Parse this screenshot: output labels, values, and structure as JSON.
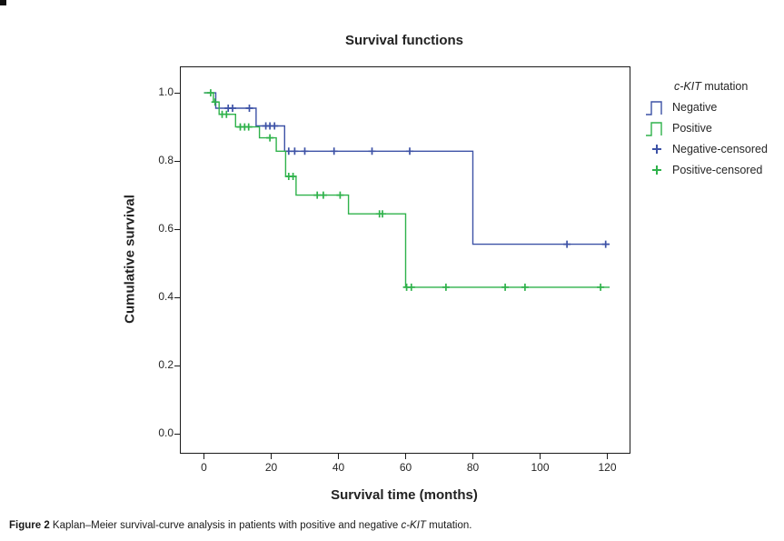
{
  "figure": {
    "title": "Survival functions",
    "x_axis_label": "Survival time (months)",
    "y_axis_label": "Cumulative survival"
  },
  "legend": {
    "title_italic": "c-KIT",
    "title_rest": " mutation",
    "entries": [
      {
        "label": "Negative",
        "glyph": "step",
        "color": "#3d52a6"
      },
      {
        "label": "Positive",
        "glyph": "step",
        "color": "#2fb24b"
      },
      {
        "label": "Negative-censored",
        "glyph": "plus",
        "color": "#3d52a6"
      },
      {
        "label": "Positive-censored",
        "glyph": "plus",
        "color": "#2fb24b"
      }
    ]
  },
  "caption": {
    "prefix": "Figure 2",
    "body_1": " Kaplan–Meier survival-curve analysis in patients with positive and negative ",
    "italic": "c-KIT",
    "body_2": " mutation."
  },
  "colors": {
    "negative": "#3d52a6",
    "positive": "#2fb24b",
    "axis": "#1a1a1a"
  },
  "chart_data": {
    "type": "line",
    "subtype": "kaplan-meier-step",
    "title": "Survival functions",
    "xlabel": "Survival time (months)",
    "ylabel": "Cumulative survival",
    "grid": false,
    "legend_position": "right",
    "xlim": [
      -6.9,
      126.6
    ],
    "ylim": [
      -0.056,
      1.075
    ],
    "x_ticks": [
      0,
      20,
      40,
      60,
      80,
      100,
      120
    ],
    "y_ticks": [
      {
        "label": "1.0",
        "value": 1.0
      },
      {
        "label": "0.8",
        "value": 0.8
      },
      {
        "label": "0.6",
        "value": 0.6
      },
      {
        "label": "0.4",
        "value": 0.4
      },
      {
        "label": "0.2",
        "value": 0.2
      },
      {
        "label": "0.0",
        "value": 0.0
      }
    ],
    "series": [
      {
        "name": "Negative",
        "color": "#3d52a6",
        "steps": [
          [
            0,
            1.0
          ],
          [
            3.5,
            0.955
          ],
          [
            15.5,
            0.903
          ],
          [
            24,
            0.829
          ],
          [
            80,
            0.556
          ]
        ],
        "end_t": 120.7,
        "censored": [
          [
            7.2,
            0.955
          ],
          [
            8.5,
            0.955
          ],
          [
            13.5,
            0.955
          ],
          [
            18.4,
            0.903
          ],
          [
            19.6,
            0.903
          ],
          [
            21,
            0.903
          ],
          [
            25.2,
            0.829
          ],
          [
            27,
            0.829
          ],
          [
            30,
            0.829
          ],
          [
            38.7,
            0.829
          ],
          [
            50,
            0.829
          ],
          [
            61.2,
            0.829
          ],
          [
            108,
            0.556
          ],
          [
            119.5,
            0.556
          ]
        ]
      },
      {
        "name": "Positive",
        "color": "#2fb24b",
        "steps": [
          [
            0,
            1.0
          ],
          [
            2.8,
            0.973
          ],
          [
            4.5,
            0.937
          ],
          [
            9.4,
            0.9
          ],
          [
            16.5,
            0.868
          ],
          [
            21.5,
            0.829
          ],
          [
            24.3,
            0.755
          ],
          [
            27.4,
            0.7
          ],
          [
            43,
            0.645
          ],
          [
            60,
            0.43
          ]
        ],
        "end_t": 120.7,
        "censored": [
          [
            2,
            1.0
          ],
          [
            3.3,
            0.973
          ],
          [
            5.4,
            0.937
          ],
          [
            6.7,
            0.937
          ],
          [
            10.8,
            0.9
          ],
          [
            12.1,
            0.9
          ],
          [
            13.3,
            0.9
          ],
          [
            19.6,
            0.868
          ],
          [
            25.2,
            0.755
          ],
          [
            26.5,
            0.755
          ],
          [
            33.7,
            0.7
          ],
          [
            35.5,
            0.7
          ],
          [
            40.5,
            0.7
          ],
          [
            52.2,
            0.645
          ],
          [
            53.1,
            0.645
          ],
          [
            60.3,
            0.43
          ],
          [
            61.7,
            0.43
          ],
          [
            72,
            0.43
          ],
          [
            89.6,
            0.43
          ],
          [
            95.5,
            0.43
          ],
          [
            118,
            0.43
          ]
        ]
      }
    ]
  }
}
